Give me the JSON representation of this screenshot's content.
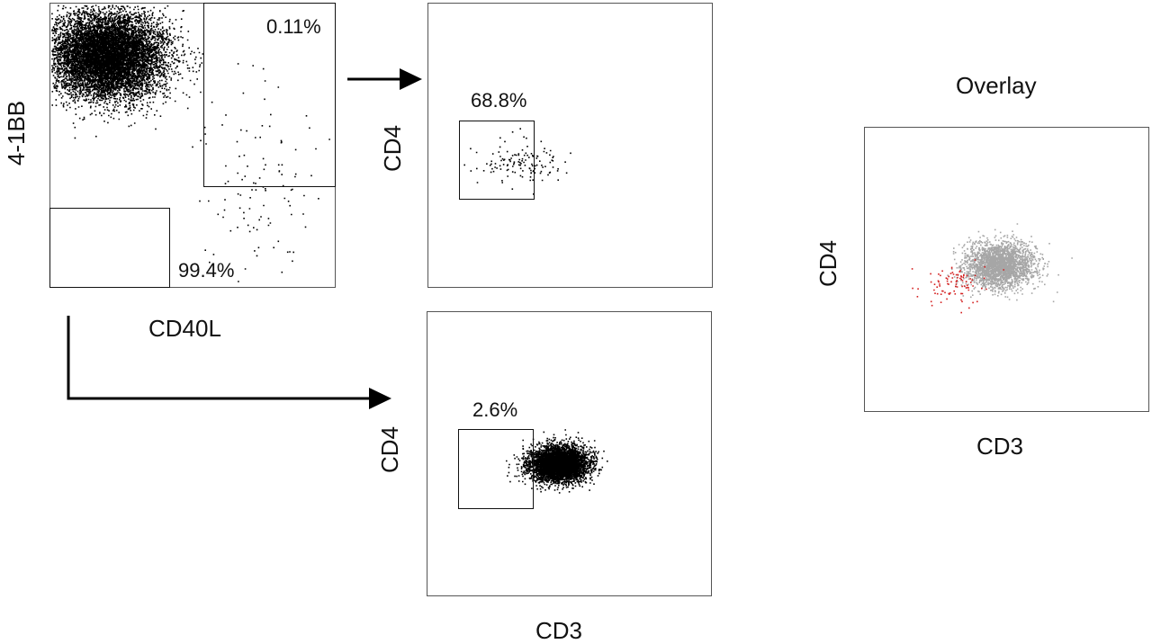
{
  "chart_data": [
    {
      "type": "scatter",
      "xlabel": "CD40L",
      "ylabel": "4-1BB",
      "gates": [
        {
          "label": "0.11%",
          "value": 0.11
        },
        {
          "label": "99.4%",
          "value": 99.4
        }
      ],
      "populations": [
        {
          "color": "#000000",
          "points": 9000,
          "center": [
            0.2,
            0.18
          ],
          "spread": [
            0.1,
            0.075
          ]
        },
        {
          "color": "#000000",
          "points": 110,
          "center": [
            0.72,
            0.6
          ],
          "spread": [
            0.11,
            0.16
          ]
        }
      ]
    },
    {
      "type": "scatter",
      "xlabel": "",
      "ylabel": "CD4",
      "gates": [
        {
          "label": "68.8%",
          "value": 68.8
        }
      ],
      "populations": [
        {
          "color": "#000000",
          "points": 130,
          "center": [
            0.32,
            0.56
          ],
          "spread": [
            0.07,
            0.04
          ]
        }
      ]
    },
    {
      "type": "scatter",
      "xlabel": "CD3",
      "ylabel": "CD4",
      "gates": [
        {
          "label": "2.6%",
          "value": 2.6
        }
      ],
      "populations": [
        {
          "color": "#000000",
          "points": 5000,
          "center": [
            0.46,
            0.53
          ],
          "spread": [
            0.05,
            0.03
          ]
        }
      ]
    },
    {
      "type": "scatter",
      "title": "Overlay",
      "xlabel": "CD3",
      "ylabel": "CD4",
      "populations": [
        {
          "color": "#a6a6a6",
          "points": 2500,
          "center": [
            0.47,
            0.48
          ],
          "spread": [
            0.06,
            0.04
          ]
        },
        {
          "color": "#d42020",
          "points": 90,
          "center": [
            0.32,
            0.55
          ],
          "spread": [
            0.06,
            0.035
          ]
        }
      ]
    }
  ]
}
